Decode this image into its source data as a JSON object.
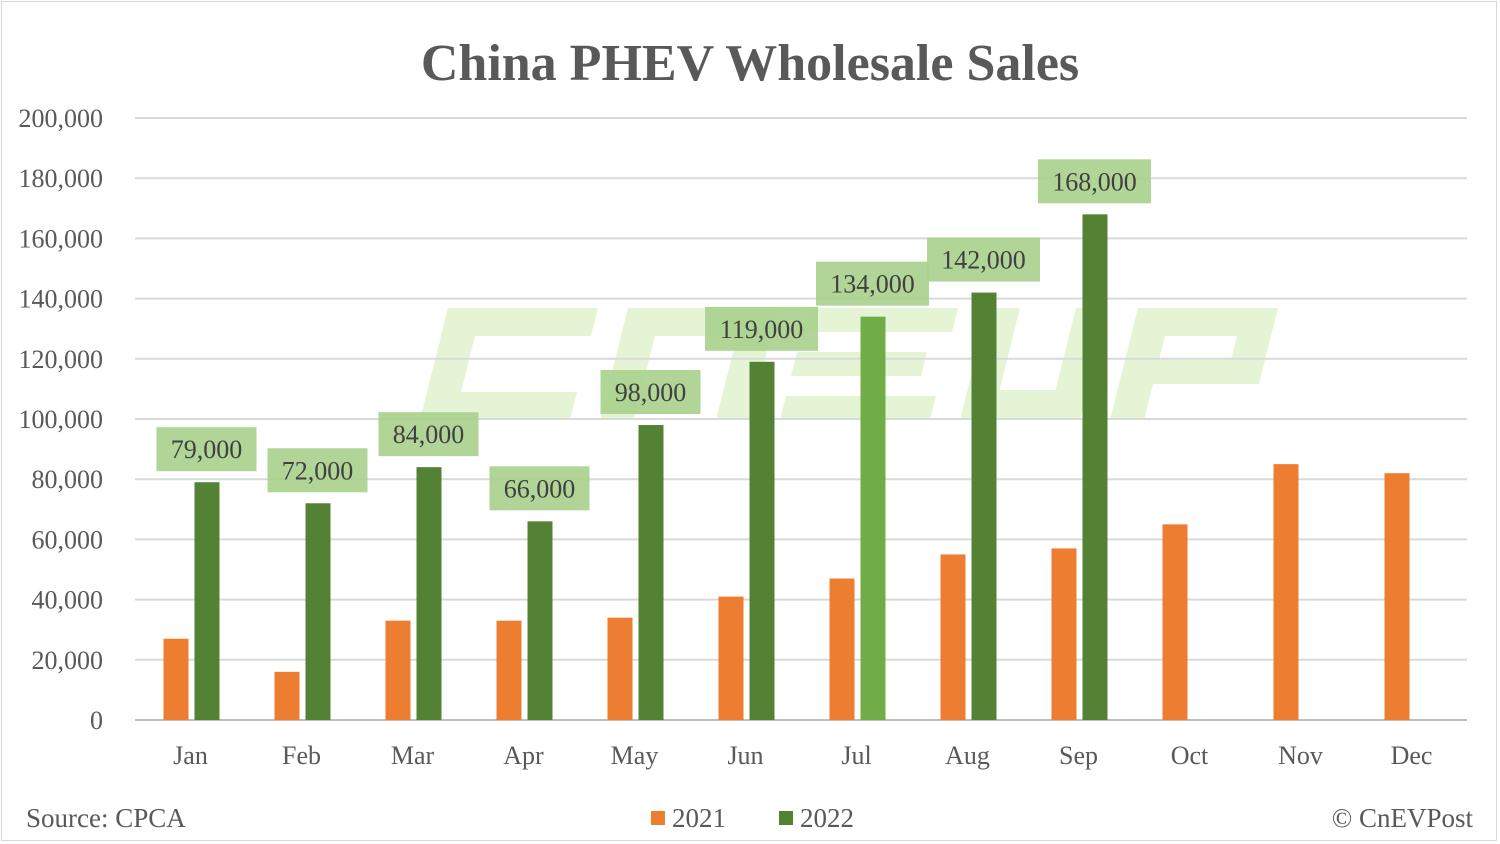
{
  "chart_data": {
    "type": "bar",
    "title": "China PHEV Wholesale Sales",
    "categories": [
      "Jan",
      "Feb",
      "Mar",
      "Apr",
      "May",
      "Jun",
      "Jul",
      "Aug",
      "Sep",
      "Oct",
      "Nov",
      "Dec"
    ],
    "series": [
      {
        "name": "2021",
        "color": "#ed7d31",
        "values": [
          27000,
          16000,
          33000,
          33000,
          34000,
          41000,
          47000,
          55000,
          57000,
          65000,
          85000,
          82000
        ]
      },
      {
        "name": "2022",
        "color": "#548235",
        "highlight_color": "#70ad47",
        "highlight_index": 6,
        "values": [
          79000,
          72000,
          84000,
          66000,
          98000,
          119000,
          134000,
          142000,
          168000,
          null,
          null,
          null
        ]
      }
    ],
    "data_labels": [
      "79,000",
      "72,000",
      "84,000",
      "66,000",
      "98,000",
      "119,000",
      "134,000",
      "142,000",
      "168,000"
    ],
    "data_label_bg": "#a9d18e",
    "ylim": [
      0,
      200000
    ],
    "yticks": [
      0,
      20000,
      40000,
      60000,
      80000,
      100000,
      120000,
      140000,
      160000,
      180000,
      200000
    ],
    "ytick_labels": [
      "0",
      "20,000",
      "40,000",
      "60,000",
      "80,000",
      "100,000",
      "120,000",
      "140,000",
      "160,000",
      "180,000",
      "200,000"
    ],
    "grid": true,
    "legend_position": "bottom-center",
    "source": "Source: CPCA",
    "credit": "© CnEVPost",
    "watermark": "CnEVPost"
  }
}
